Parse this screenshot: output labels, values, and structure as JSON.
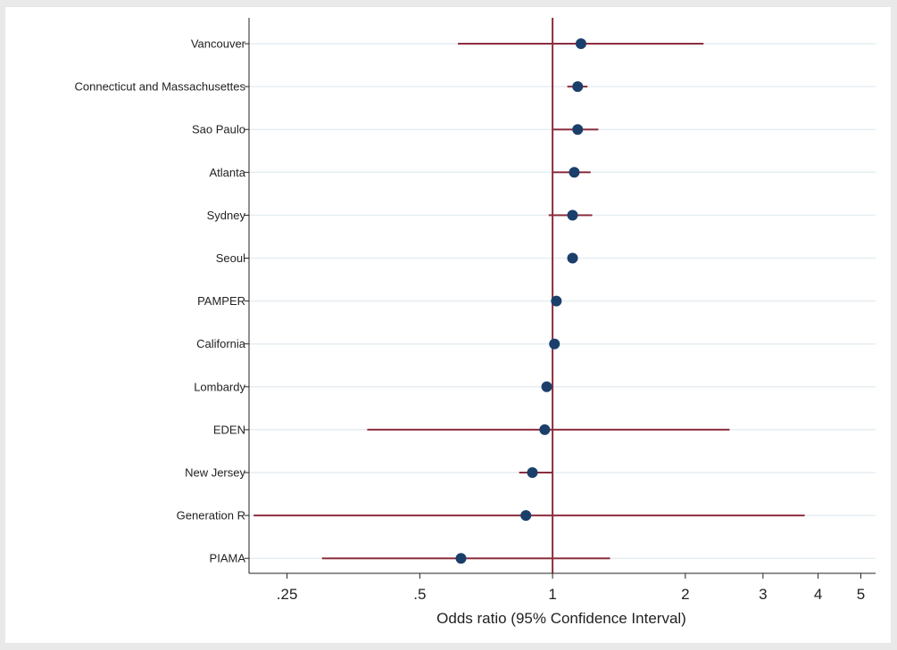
{
  "chart_data": {
    "type": "forest",
    "xlabel": "Odds ratio (95% Confidence Interval)",
    "ylabel": "",
    "title": "",
    "x_scale": "log",
    "xlim": [
      0.205,
      5.4
    ],
    "reference_line": 1,
    "xticks": [
      {
        "value": 0.25,
        "label": ".25"
      },
      {
        "value": 0.5,
        "label": ".5"
      },
      {
        "value": 1,
        "label": "1"
      },
      {
        "value": 2,
        "label": "2"
      },
      {
        "value": 3,
        "label": "3"
      },
      {
        "value": 4,
        "label": "4"
      },
      {
        "value": 5,
        "label": "5"
      }
    ],
    "categories": [
      "Vancouver",
      "Connecticut and Massachusettes",
      "Sao Paulo",
      "Atlanta",
      "Sydney",
      "Seoul",
      "PAMPER",
      "California",
      "Lombardy",
      "EDEN",
      "New Jersey",
      "Generation R",
      "PIAMA"
    ],
    "estimates": [
      1.16,
      1.14,
      1.14,
      1.12,
      1.11,
      1.11,
      1.02,
      1.01,
      0.97,
      0.96,
      0.9,
      0.87,
      0.62
    ],
    "ci_lower": [
      0.61,
      1.08,
      1.0,
      1.0,
      0.98,
      1.08,
      1.02,
      1.01,
      0.97,
      0.38,
      0.84,
      0.21,
      0.3
    ],
    "ci_upper": [
      2.2,
      1.2,
      1.27,
      1.22,
      1.23,
      1.14,
      1.02,
      1.01,
      0.97,
      2.52,
      1.0,
      3.73,
      1.35
    ],
    "grid": true,
    "colors": {
      "background": "#e9e9e9",
      "plot_background": "#ffffff",
      "gridline": "#e6eef2",
      "ci_line": "#8b2e3e",
      "reference_line": "#8b2e3e",
      "marker": "#1b3f6b",
      "axis": "#222222"
    }
  }
}
